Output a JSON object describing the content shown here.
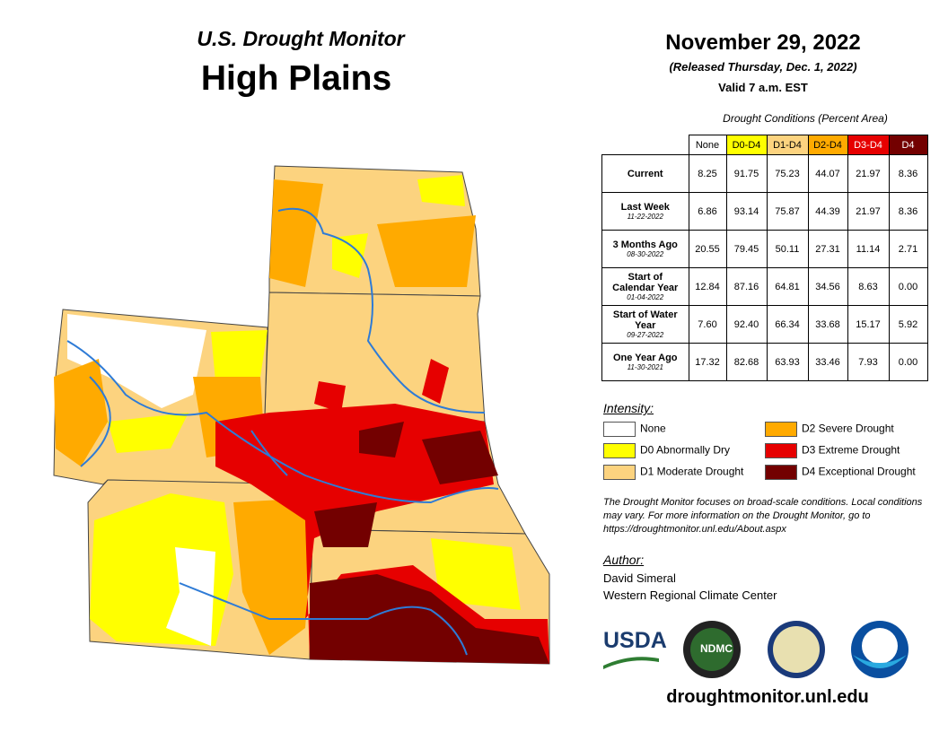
{
  "header": {
    "title": "U.S. Drought Monitor",
    "region": "High Plains"
  },
  "dates": {
    "date": "November 29, 2022",
    "released": "(Released Thursday, Dec. 1, 2022)",
    "valid": "Valid 7 a.m. EST"
  },
  "table": {
    "caption": "Drought Conditions (Percent Area)",
    "columns": [
      {
        "label": "None",
        "color": "#ffffff",
        "text": "#000000"
      },
      {
        "label": "D0-D4",
        "color": "#ffff00",
        "text": "#000000"
      },
      {
        "label": "D1-D4",
        "color": "#fcd37f",
        "text": "#000000"
      },
      {
        "label": "D2-D4",
        "color": "#ffaa00",
        "text": "#000000"
      },
      {
        "label": "D3-D4",
        "color": "#e60000",
        "text": "#ffffff"
      },
      {
        "label": "D4",
        "color": "#730000",
        "text": "#ffffff"
      }
    ],
    "rows": [
      {
        "label": "Current",
        "values": [
          "8.25",
          "91.75",
          "75.23",
          "44.07",
          "21.97",
          "8.36"
        ]
      },
      {
        "label": "Last Week",
        "date": "11-22-2022",
        "values": [
          "6.86",
          "93.14",
          "75.87",
          "44.39",
          "21.97",
          "8.36"
        ]
      },
      {
        "label": "3 Months Ago",
        "date": "08-30-2022",
        "values": [
          "20.55",
          "79.45",
          "50.11",
          "27.31",
          "11.14",
          "2.71"
        ]
      },
      {
        "label": "Start of Calendar Year",
        "date": "01-04-2022",
        "values": [
          "12.84",
          "87.16",
          "64.81",
          "34.56",
          "8.63",
          "0.00"
        ]
      },
      {
        "label": "Start of Water Year",
        "date": "09-27-2022",
        "values": [
          "7.60",
          "92.40",
          "66.34",
          "33.68",
          "15.17",
          "5.92"
        ]
      },
      {
        "label": "One Year Ago",
        "date": "11-30-2021",
        "values": [
          "17.32",
          "82.68",
          "63.93",
          "33.46",
          "7.93",
          "0.00"
        ]
      }
    ]
  },
  "legend": {
    "title": "Intensity:",
    "items": [
      {
        "label": "None",
        "color": "#ffffff"
      },
      {
        "label": "D2 Severe Drought",
        "color": "#ffaa00"
      },
      {
        "label": "D0 Abnormally Dry",
        "color": "#ffff00"
      },
      {
        "label": "D3 Extreme Drought",
        "color": "#e60000"
      },
      {
        "label": "D1 Moderate Drought",
        "color": "#fcd37f"
      },
      {
        "label": "D4 Exceptional Drought",
        "color": "#730000"
      }
    ]
  },
  "note": "The Drought Monitor focuses on broad-scale conditions. Local conditions may vary. For more information on the Drought Monitor, go to https://droughtmonitor.unl.edu/About.aspx",
  "author": {
    "label": "Author:",
    "name": "David Simeral",
    "org": "Western Regional Climate Center"
  },
  "logos": {
    "usda": "USDA",
    "ndmc": "NDMC"
  },
  "footer": "droughtmonitor.unl.edu"
}
